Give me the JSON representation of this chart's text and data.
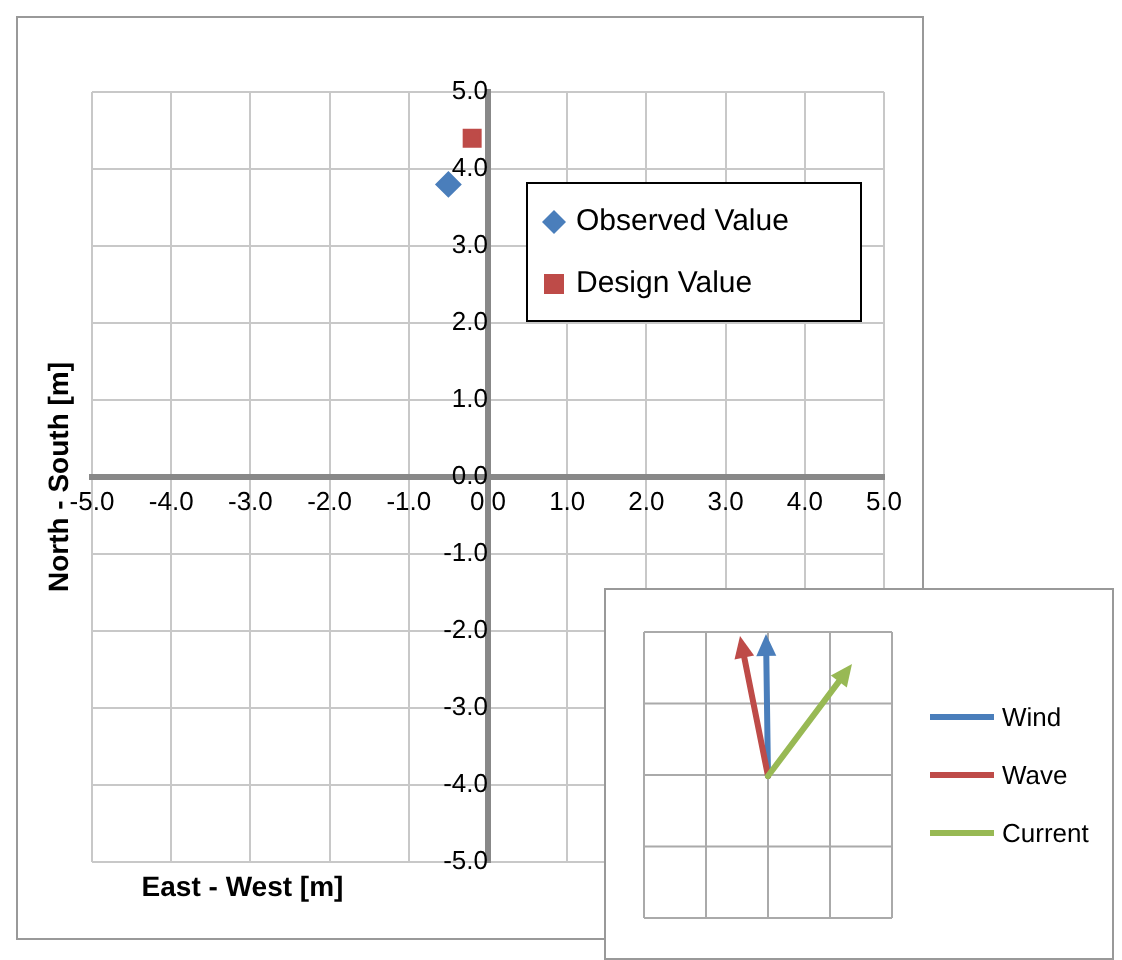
{
  "chart_data": [
    {
      "type": "scatter",
      "xlabel": "East - West [m]",
      "ylabel": "North - South [m]",
      "series": [
        {
          "name": "Observed Value",
          "color": "#4a7ebb",
          "marker": "diamond",
          "x": [
            -0.5
          ],
          "values": [
            3.8
          ]
        },
        {
          "name": "Design Value",
          "color": "#be4b48",
          "marker": "square",
          "x": [
            -0.2
          ],
          "values": [
            4.4
          ]
        }
      ],
      "xlim": [
        -5,
        5
      ],
      "ylim": [
        -5,
        5
      ],
      "xticks": [
        {
          "value": -5,
          "label": "-5.0"
        },
        {
          "value": -4,
          "label": "-4.0"
        },
        {
          "value": -3,
          "label": "-3.0"
        },
        {
          "value": -2,
          "label": "-2.0"
        },
        {
          "value": -1,
          "label": "-1.0"
        },
        {
          "value": 0,
          "label": "0.0"
        },
        {
          "value": 1,
          "label": "1.0"
        },
        {
          "value": 2,
          "label": "2.0"
        },
        {
          "value": 3,
          "label": "3.0"
        },
        {
          "value": 4,
          "label": "4.0"
        },
        {
          "value": 5,
          "label": "5.0"
        }
      ],
      "yticks": [
        {
          "value": -5,
          "label": "-5.0"
        },
        {
          "value": -4,
          "label": "-4.0"
        },
        {
          "value": -3,
          "label": "-3.0"
        },
        {
          "value": -2,
          "label": "-2.0"
        },
        {
          "value": -1,
          "label": "-1.0"
        },
        {
          "value": 0,
          "label": "0.0"
        },
        {
          "value": 1,
          "label": "1.0"
        },
        {
          "value": 2,
          "label": "2.0"
        },
        {
          "value": 3,
          "label": "3.0"
        },
        {
          "value": 4,
          "label": "4.0"
        },
        {
          "value": 5,
          "label": "5.0"
        }
      ],
      "grid": true,
      "legend": "top right"
    },
    {
      "type": "other",
      "legend": "right",
      "series": [
        {
          "name": "Wind",
          "color": "#4a7ebb"
        },
        {
          "name": "Wave",
          "color": "#be4b48"
        },
        {
          "name": "Current",
          "color": "#98b954"
        }
      ]
    }
  ]
}
